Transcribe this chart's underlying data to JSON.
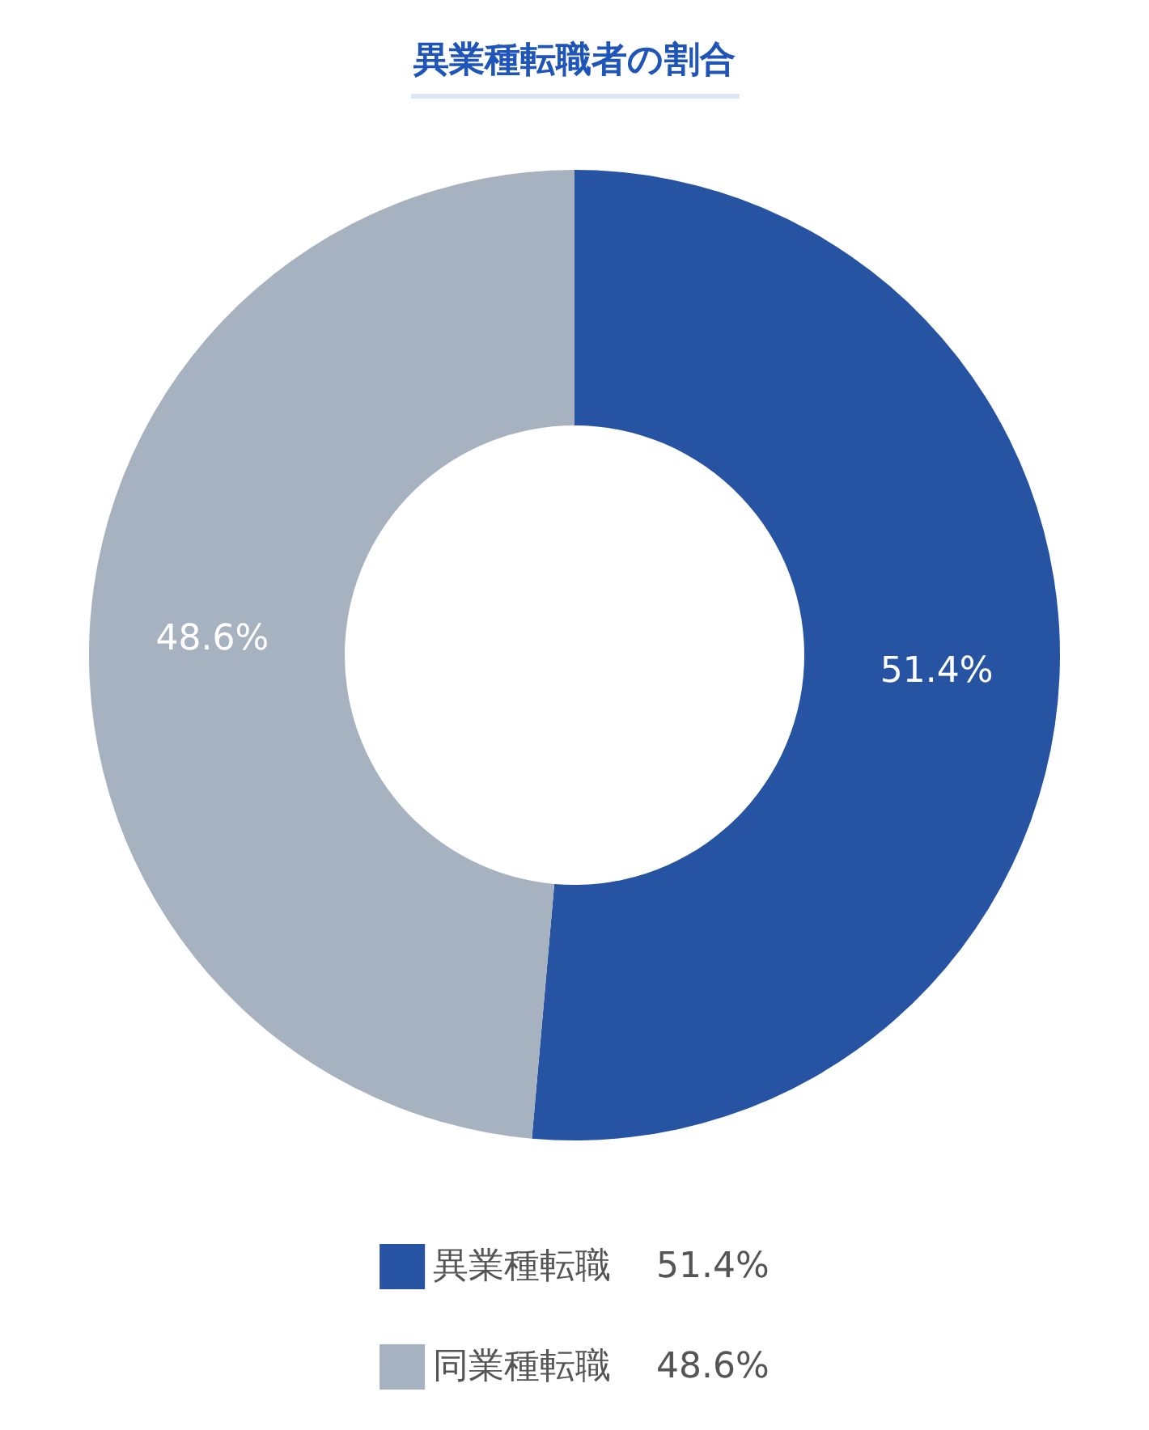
{
  "chart_data": {
    "type": "donut",
    "title": "異業種転職者の割合",
    "categories": [
      "異業種転職",
      "同業種転職"
    ],
    "values": [
      51.4,
      48.6
    ],
    "colors": [
      "#2654a3",
      "#a6b2bf"
    ],
    "value_labels": [
      "51.4%",
      "48.6%"
    ],
    "data_labels": true,
    "legend": "bottom"
  }
}
